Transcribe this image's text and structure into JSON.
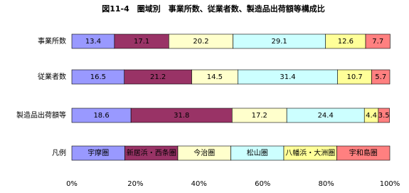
{
  "chart_data": {
    "type": "stacked-bar-horizontal",
    "title": "図11-4　圏域別　事業所数、従業者数、製造品出荷額等構成比",
    "categories": [
      "事業所数",
      "従業者数",
      "製造品出荷額等"
    ],
    "series": [
      {
        "name": "宇摩圏",
        "color": "#9999ff",
        "values": [
          13.4,
          16.5,
          18.6
        ]
      },
      {
        "name": "新居浜・西条圏",
        "color": "#993366",
        "values": [
          17.1,
          21.2,
          31.8
        ]
      },
      {
        "name": "今治圏",
        "color": "#ffffcc",
        "values": [
          20.2,
          14.5,
          17.2
        ]
      },
      {
        "name": "松山圏",
        "color": "#ccffff",
        "values": [
          29.1,
          31.4,
          24.4
        ]
      },
      {
        "name": "八幡浜・大洲圏",
        "color": "#ffff99",
        "values": [
          12.6,
          10.7,
          4.4
        ]
      },
      {
        "name": "宇和島圏",
        "color": "#ff8080",
        "values": [
          7.7,
          5.7,
          3.5
        ]
      }
    ],
    "legend_title": "凡例",
    "legend": "bottom-row",
    "xlim": [
      0,
      100
    ],
    "xticks": [
      {
        "value": 0,
        "label": "0%"
      },
      {
        "value": 20,
        "label": "20%"
      },
      {
        "value": 40,
        "label": "40%"
      },
      {
        "value": 60,
        "label": "60%"
      },
      {
        "value": 80,
        "label": "80%"
      },
      {
        "value": 100,
        "label": "100%"
      }
    ]
  }
}
